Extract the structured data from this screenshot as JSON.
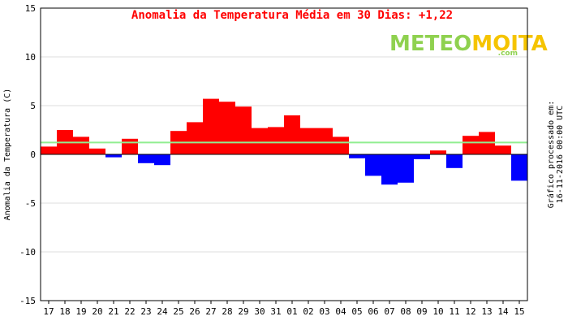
{
  "title": "Anomalia da Temperatura Média em 30 Dias: +1,22",
  "logo": {
    "part1": "METEO",
    "part2": "MOITA",
    "suffix": ".com"
  },
  "side_note": {
    "line1": "Gráfico processado em:",
    "line2": "16-11-2016 00:00 UTC"
  },
  "colors": {
    "positive": "#ff0000",
    "negative": "#0000ff",
    "mean_line": "#90ee90",
    "title": "#ff0000",
    "logo_part1": "#8fd14f",
    "logo_part2": "#f5c400",
    "grid": "#dddddd"
  },
  "chart_data": {
    "type": "bar",
    "title": "Anomalia da Temperatura Média em 30 Dias: +1,22",
    "ylabel": "Anomalia da Temperatura (C)",
    "xlabel": "",
    "ylim": [
      -15,
      15
    ],
    "yticks": [
      -15,
      -10,
      -5,
      0,
      5,
      10,
      15
    ],
    "grid": true,
    "mean_line": 1.22,
    "categories": [
      "17",
      "18",
      "19",
      "20",
      "21",
      "22",
      "23",
      "24",
      "25",
      "26",
      "27",
      "28",
      "29",
      "30",
      "31",
      "01",
      "02",
      "03",
      "04",
      "05",
      "06",
      "07",
      "08",
      "09",
      "10",
      "11",
      "12",
      "13",
      "14",
      "15"
    ],
    "values": [
      0.8,
      2.5,
      1.8,
      0.6,
      -0.3,
      1.6,
      -0.9,
      -1.1,
      2.4,
      3.3,
      5.7,
      5.4,
      4.9,
      2.7,
      2.8,
      4.0,
      2.7,
      2.7,
      1.8,
      -0.4,
      -2.2,
      -3.1,
      -2.9,
      -0.5,
      0.4,
      -1.4,
      1.9,
      2.3,
      0.9,
      -2.7
    ]
  }
}
